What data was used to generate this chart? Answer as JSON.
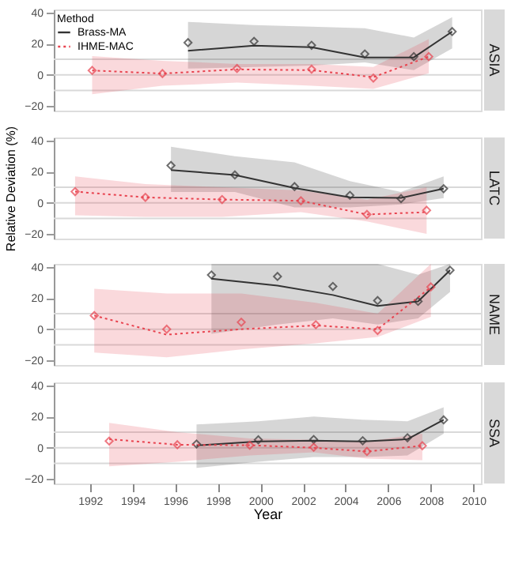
{
  "chart_data": [
    {
      "type": "line",
      "title": "ASIA",
      "legend": "top left",
      "legend_title": "Method",
      "tick_labels": "y",
      "xlim": [
        1990.3,
        2010.35
      ],
      "ylim": [
        -23,
        42
      ],
      "yticks": [
        -20,
        0,
        20,
        40
      ],
      "ref_lines": [
        {
          "axis": "y",
          "value": 0,
          "color": "#d9d9d9"
        },
        {
          "axis": "y",
          "value": 10,
          "color": "#d9d9d9"
        },
        {
          "axis": "y",
          "value": -10,
          "color": "#d9d9d9"
        }
      ],
      "series": [
        {
          "name": "Brass-MA",
          "type": "line",
          "color": "#333333",
          "line_style": "solid",
          "marker": "none",
          "x": [
            1996.6,
            1999.7,
            2002.4,
            2004.9,
            2007.2,
            2009.0
          ],
          "values": [
            15.5,
            18.8,
            17.7,
            11.2,
            11.2,
            27.8
          ],
          "lower": [
            4,
            5,
            6,
            8,
            3,
            17
          ],
          "upper": [
            34,
            32,
            31,
            30,
            24,
            37
          ]
        },
        {
          "type": "scatter",
          "color": "#333333",
          "marker": "diamond",
          "x": [
            1996.6,
            1999.7,
            2002.4,
            2004.9,
            2007.2,
            2009.0
          ],
          "values": [
            20.7,
            21.5,
            19,
            13.4,
            11.7,
            27.8
          ]
        },
        {
          "name": "IHME-MAC",
          "type": "line",
          "color": "#e8434f",
          "line_style": "dotted",
          "marker": "none",
          "x": [
            1992.1,
            1995.4,
            1998.9,
            2002.4,
            2005.3,
            2007.9
          ],
          "values": [
            2.8,
            0.8,
            3.5,
            3,
            -1.5,
            11.7
          ],
          "lower": [
            -12.5,
            -7,
            -5,
            -7,
            -9,
            1
          ],
          "upper": [
            12,
            9,
            7,
            7,
            5,
            23
          ]
        },
        {
          "type": "scatter",
          "color": "#e8434f",
          "marker": "diamond",
          "x": [
            1992.1,
            1995.4,
            1998.9,
            2002.4,
            2005.3,
            2007.9
          ],
          "values": [
            2.8,
            0.8,
            4.1,
            3.6,
            -2.1,
            11.7
          ]
        }
      ]
    },
    {
      "type": "line",
      "title": "LATC",
      "ylabel": "Relative Deviation (%)",
      "tick_labels": "y",
      "xlim": [
        1990.3,
        2010.35
      ],
      "ylim": [
        -23,
        42
      ],
      "yticks": [
        -20,
        0,
        20,
        40
      ],
      "ref_lines": [
        {
          "axis": "y",
          "value": 0,
          "color": "#d9d9d9"
        },
        {
          "axis": "y",
          "value": 10,
          "color": "#d9d9d9"
        },
        {
          "axis": "y",
          "value": -10,
          "color": "#d9d9d9"
        }
      ],
      "series": [
        {
          "type": "line",
          "color": "#333333",
          "line_style": "solid",
          "marker": "none",
          "x": [
            1995.8,
            1998.8,
            2001.6,
            2004.2,
            2006.6,
            2008.6
          ],
          "values": [
            21,
            17.9,
            9.5,
            3.5,
            3.2,
            9.1
          ],
          "lower": [
            7,
            7,
            -3,
            -3,
            -1,
            3
          ],
          "upper": [
            36,
            30,
            26,
            14,
            7,
            17
          ]
        },
        {
          "type": "scatter",
          "color": "#333333",
          "marker": "diamond",
          "x": [
            1995.8,
            1998.8,
            2001.6,
            2004.2,
            2006.6,
            2008.6
          ],
          "values": [
            24,
            17.9,
            10.4,
            4.8,
            2.7,
            9.1
          ]
        },
        {
          "type": "line",
          "color": "#e8434f",
          "line_style": "dotted",
          "marker": "none",
          "x": [
            1991.3,
            1994.6,
            1998.2,
            2001.9,
            2005.0,
            2007.8
          ],
          "values": [
            7.2,
            3.5,
            2.1,
            1.3,
            -7.5,
            -6
          ],
          "lower": [
            -8,
            -9,
            -9,
            -6,
            -12,
            -20
          ],
          "upper": [
            17,
            12,
            10,
            8,
            2,
            10
          ]
        },
        {
          "type": "scatter",
          "color": "#e8434f",
          "marker": "diamond",
          "x": [
            1991.3,
            1994.6,
            1998.2,
            2001.9,
            2005.0,
            2007.8
          ],
          "values": [
            7.2,
            3.5,
            2.1,
            1.3,
            -7.5,
            -4.8
          ]
        }
      ]
    },
    {
      "type": "line",
      "title": "NAME",
      "tick_labels": "y",
      "xlim": [
        1990.3,
        2010.35
      ],
      "ylim": [
        -23,
        42
      ],
      "yticks": [
        -20,
        0,
        20,
        40
      ],
      "ref_lines": [
        {
          "axis": "y",
          "value": 0,
          "color": "#d9d9d9"
        },
        {
          "axis": "y",
          "value": 10,
          "color": "#d9d9d9"
        },
        {
          "axis": "y",
          "value": -10,
          "color": "#d9d9d9"
        }
      ],
      "series": [
        {
          "type": "line",
          "color": "#333333",
          "line_style": "solid",
          "marker": "none",
          "x": [
            1997.7,
            2000.8,
            2003.4,
            2005.5,
            2007.4,
            2008.9
          ],
          "values": [
            32.5,
            28,
            22,
            15,
            17.9,
            37.9
          ],
          "lower": [
            -3,
            3,
            7,
            3,
            7,
            24
          ],
          "upper": [
            42,
            42,
            42,
            42,
            35,
            42
          ]
        },
        {
          "type": "scatter",
          "color": "#333333",
          "marker": "diamond",
          "x": [
            1997.7,
            2000.8,
            2003.4,
            2005.5,
            2007.4,
            2008.9
          ],
          "values": [
            34.9,
            33.9,
            27.5,
            18.4,
            17.9,
            37.9
          ]
        },
        {
          "type": "line",
          "color": "#e8434f",
          "line_style": "dotted",
          "marker": "none",
          "x": [
            1992.2,
            1995.6,
            1999.1,
            2002.6,
            2005.5,
            2008.0
          ],
          "values": [
            8.8,
            -3.5,
            0,
            2.4,
            0,
            27
          ],
          "lower": [
            -15,
            -18,
            -13,
            -9,
            -5,
            8
          ],
          "upper": [
            26,
            23,
            23,
            17,
            10,
            42
          ]
        },
        {
          "type": "scatter",
          "color": "#e8434f",
          "marker": "diamond",
          "x": [
            1992.2,
            1995.6,
            1999.1,
            2002.6,
            2005.5,
            2008.0
          ],
          "values": [
            8.8,
            0,
            4.5,
            2.9,
            -0.8,
            27.2
          ]
        }
      ]
    },
    {
      "type": "line",
      "title": "SSA",
      "xlabel": "Year",
      "xlim": [
        1990.3,
        2010.35
      ],
      "xticks": [
        1992,
        1994,
        1996,
        1998,
        2000,
        2002,
        2004,
        2006,
        2008,
        2010
      ],
      "ylim": [
        -23,
        42
      ],
      "yticks": [
        -20,
        0,
        20,
        40
      ],
      "ref_lines": [
        {
          "axis": "y",
          "value": 0,
          "color": "#d9d9d9"
        },
        {
          "axis": "y",
          "value": 10,
          "color": "#d9d9d9"
        },
        {
          "axis": "y",
          "value": -10,
          "color": "#d9d9d9"
        }
      ],
      "series": [
        {
          "type": "line",
          "color": "#333333",
          "line_style": "solid",
          "marker": "none",
          "x": [
            1997.0,
            1999.9,
            2002.5,
            2004.8,
            2006.9,
            2008.6
          ],
          "values": [
            1.5,
            4,
            4.5,
            4,
            5.5,
            17.9
          ],
          "lower": [
            -13,
            -9,
            -6,
            -6,
            -5,
            9
          ],
          "upper": [
            15,
            17,
            20,
            18,
            17,
            26
          ]
        },
        {
          "type": "scatter",
          "color": "#333333",
          "marker": "diamond",
          "x": [
            1997.0,
            1999.9,
            2002.5,
            2004.8,
            2006.9,
            2008.6
          ],
          "values": [
            2.4,
            5.1,
            5.3,
            4.5,
            6.4,
            17.9
          ]
        },
        {
          "type": "line",
          "color": "#e8434f",
          "line_style": "dotted",
          "marker": "none",
          "x": [
            1992.9,
            1996.1,
            1999.5,
            2002.5,
            2005.0,
            2007.6
          ],
          "values": [
            5.5,
            1.9,
            1.6,
            0,
            -2.4,
            1.3
          ],
          "lower": [
            -12,
            -9,
            -5,
            -3,
            -7,
            -8
          ],
          "upper": [
            16,
            10,
            6,
            5,
            4,
            9
          ]
        },
        {
          "type": "scatter",
          "color": "#e8434f",
          "marker": "diamond",
          "x": [
            1992.9,
            1996.1,
            1999.5,
            2002.5,
            2005.0,
            2007.6
          ],
          "values": [
            4.3,
            1.9,
            1.6,
            0.3,
            -2.4,
            1.3
          ]
        }
      ]
    }
  ]
}
